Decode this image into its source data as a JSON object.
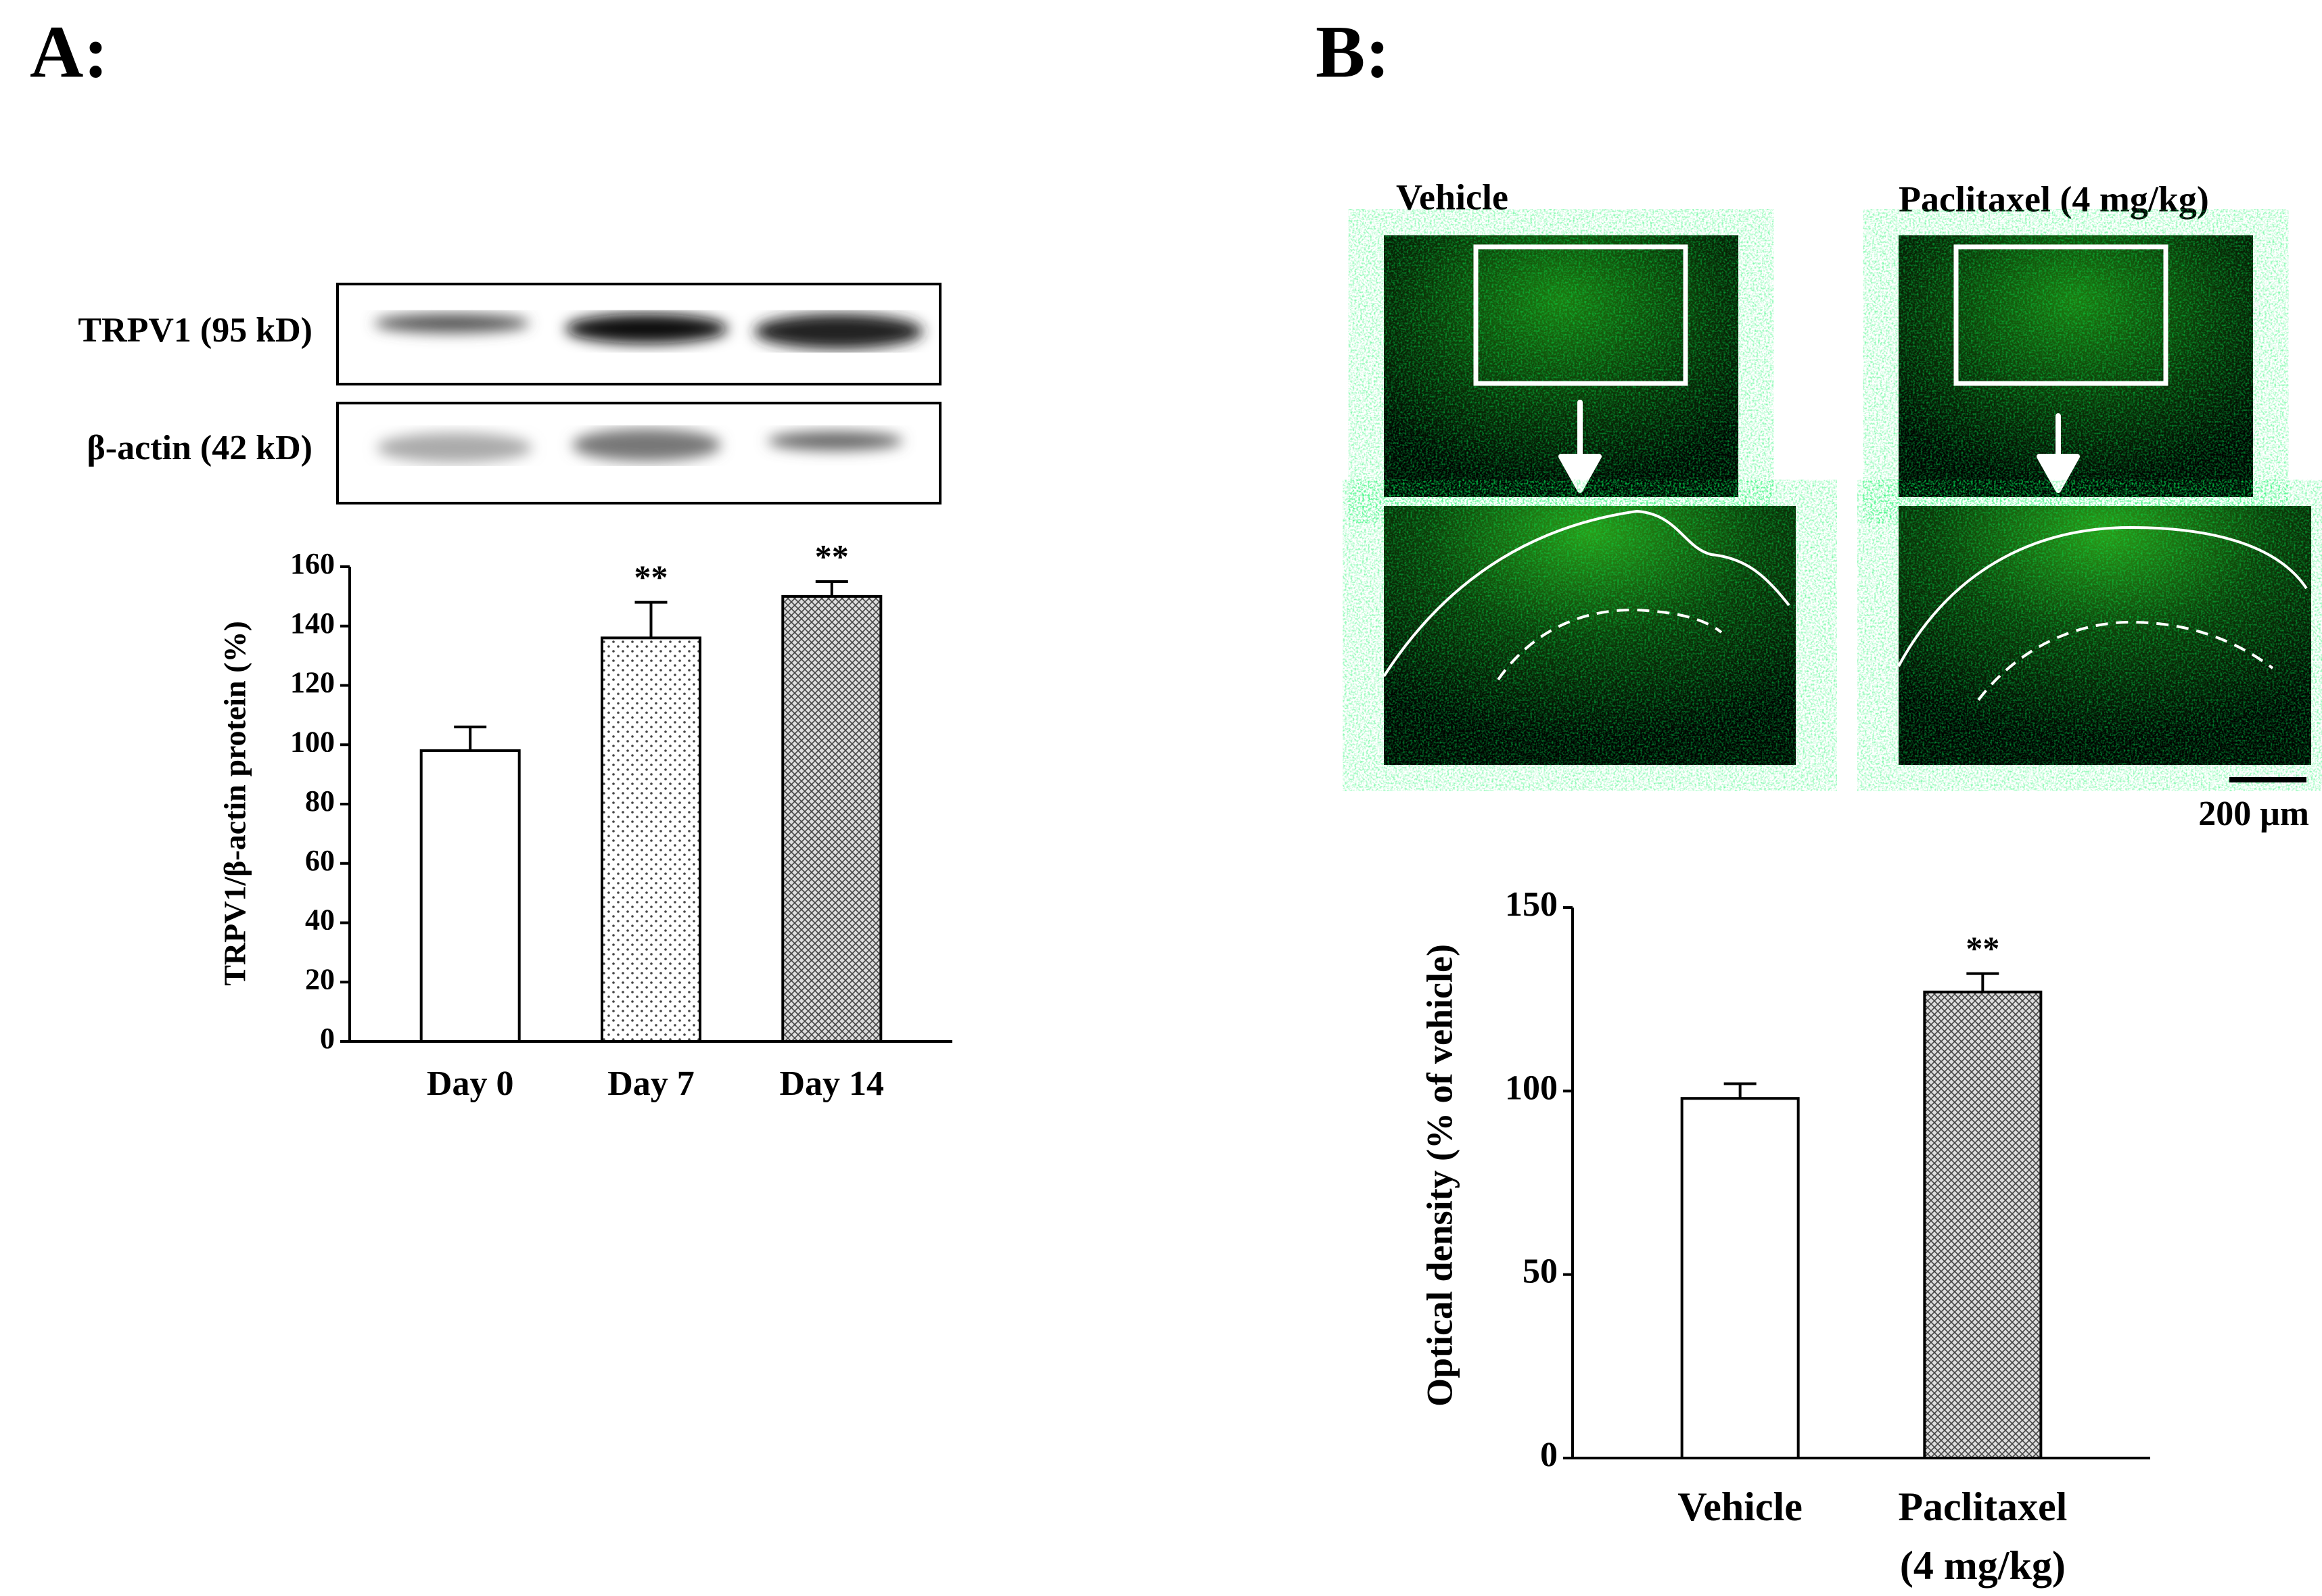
{
  "figure": {
    "panel_labels": [
      "A:",
      "B:"
    ],
    "blot_labels": [
      "TRPV1 (95 kD)",
      "β-actin (42 kD)"
    ],
    "image_labels": [
      "Vehicle",
      "Paclitaxel (4 mg/kg)"
    ],
    "scale_bar": "200 μm"
  },
  "chart_data": [
    {
      "type": "bar",
      "ylabel": "TRPV1/β-actin protein (%)",
      "categories": [
        "Day 0",
        "Day 7",
        "Day 14"
      ],
      "values": [
        98,
        136,
        150
      ],
      "errors": [
        8,
        12,
        5
      ],
      "annotations": [
        null,
        "**",
        "**"
      ],
      "patterns": [
        "none",
        "dots",
        "crosshatch"
      ],
      "color": "#ffffff",
      "ylim": [
        0,
        160
      ],
      "yticks": [
        0,
        20,
        40,
        60,
        80,
        100,
        120,
        140,
        160
      ]
    },
    {
      "type": "bar",
      "ylabel": "Optical density (% of vehicle)",
      "categories": [
        "Vehicle",
        "Paclitaxel (4 mg/kg)"
      ],
      "values": [
        98,
        127
      ],
      "errors": [
        4,
        5
      ],
      "annotations": [
        null,
        "**"
      ],
      "patterns": [
        "none",
        "crosshatch"
      ],
      "color": "#ffffff",
      "ylim": [
        0,
        150
      ],
      "yticks": [
        0,
        50,
        100,
        150
      ]
    }
  ]
}
